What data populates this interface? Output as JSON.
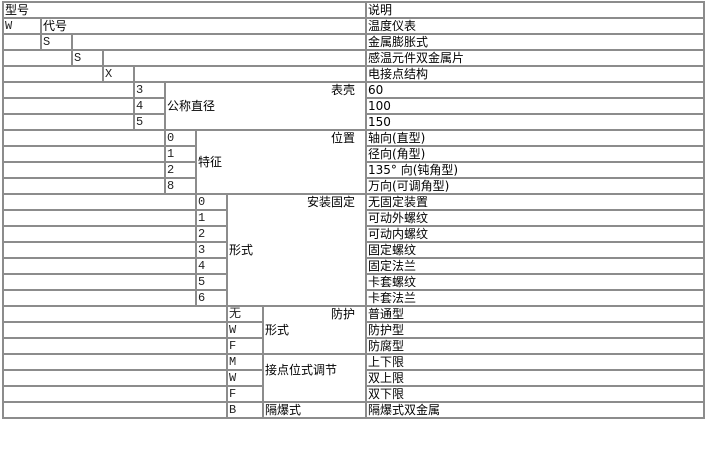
{
  "header": {
    "model": "型号",
    "description": "说明"
  },
  "code_row": {
    "code": "W",
    "label": "代号",
    "description": "温度仪表"
  },
  "levels": [
    {
      "code": "S",
      "description": "金属膨胀式"
    },
    {
      "code": "S",
      "description": "感温元件双金属片"
    },
    {
      "code": "X",
      "description": "电接点结构"
    }
  ],
  "groups": [
    {
      "title": "表壳",
      "subtitle": "公称直径",
      "options": [
        {
          "code": "3",
          "description": "60"
        },
        {
          "code": "4",
          "description": "100"
        },
        {
          "code": "5",
          "description": "150"
        }
      ]
    },
    {
      "title": "位置",
      "subtitle": "特征",
      "options": [
        {
          "code": "0",
          "description": "轴向(直型)"
        },
        {
          "code": "1",
          "description": "径向(角型)"
        },
        {
          "code": "2",
          "description": "135° 向(钝角型)"
        },
        {
          "code": "8",
          "description": "万向(可调角型)"
        }
      ]
    },
    {
      "title": "安装固定",
      "subtitle": "形式",
      "options": [
        {
          "code": "0",
          "description": "无固定装置"
        },
        {
          "code": "1",
          "description": "可动外螺纹"
        },
        {
          "code": "2",
          "description": "可动内螺纹"
        },
        {
          "code": "3",
          "description": "固定螺纹"
        },
        {
          "code": "4",
          "description": "固定法兰"
        },
        {
          "code": "5",
          "description": "卡套螺纹"
        },
        {
          "code": "6",
          "description": "卡套法兰"
        }
      ]
    },
    {
      "title": "防护",
      "subtitle": "形式",
      "options": [
        {
          "code": "无",
          "description": "普通型"
        },
        {
          "code": "W",
          "description": "防护型"
        },
        {
          "code": "F",
          "description": "防腐型"
        }
      ]
    },
    {
      "title": "",
      "subtitle": "接点位式调节",
      "options": [
        {
          "code": "M",
          "description": "上下限"
        },
        {
          "code": "W",
          "description": "双上限"
        },
        {
          "code": "F",
          "description": "双下限"
        }
      ]
    },
    {
      "title": "",
      "subtitle": "隔爆式",
      "options": [
        {
          "code": "B",
          "description": "隔爆式双金属"
        }
      ]
    }
  ]
}
